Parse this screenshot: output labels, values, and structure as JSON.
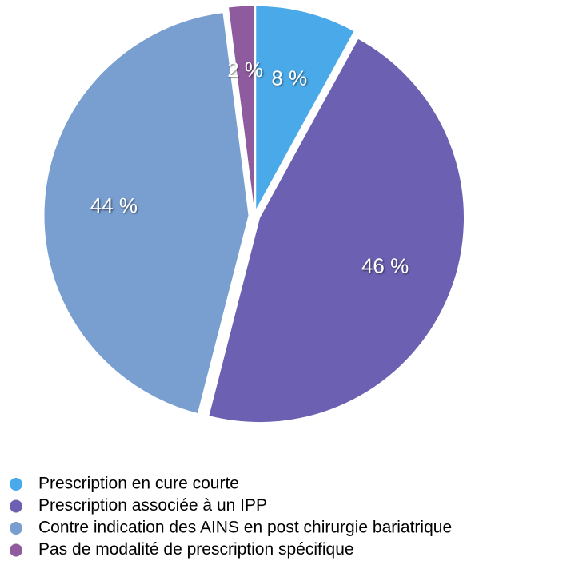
{
  "chart_data": {
    "type": "pie",
    "categories": [
      "Prescription en cure courte",
      "Prescription associée à un IPP",
      "Contre indication des AINS en post chirurgie bariatrique",
      "Pas de modalité de prescription spécifique"
    ],
    "values": [
      8,
      46,
      44,
      2
    ],
    "value_labels": [
      "8 %",
      "46 %",
      "44 %",
      "2 %"
    ],
    "colors": [
      "#4aa9e9",
      "#6b60b1",
      "#789fd0",
      "#8e5b9f"
    ]
  }
}
